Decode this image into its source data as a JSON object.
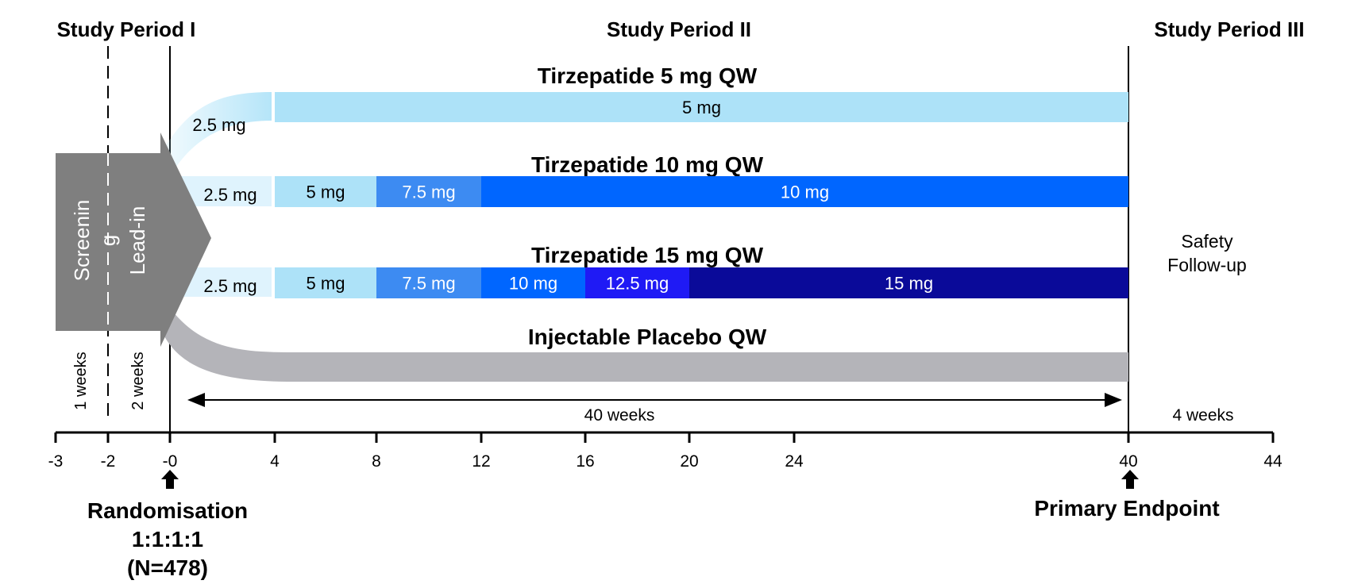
{
  "periods": {
    "p1": "Study Period I",
    "p2": "Study Period II",
    "p3": "Study Period III"
  },
  "arms": {
    "t5": {
      "title": "Tirzepatide 5 mg QW",
      "lead": "2.5 mg",
      "segments": [
        {
          "label": "5 mg",
          "start": 4,
          "end": 40,
          "color": "#ade2f8",
          "text_color": "#000000"
        }
      ]
    },
    "t10": {
      "title": "Tirzepatide 10 mg QW",
      "lead": "2.5 mg",
      "segments": [
        {
          "label": "5 mg",
          "start": 4,
          "end": 8,
          "color": "#ade2f8",
          "text_color": "#000000"
        },
        {
          "label": "7.5 mg",
          "start": 8,
          "end": 12,
          "color": "#3d8bf2",
          "text_color": "#ffffff"
        },
        {
          "label": "10 mg",
          "start": 12,
          "end": 40,
          "color": "#0066ff",
          "text_color": "#ffffff"
        }
      ]
    },
    "t15": {
      "title": "Tirzepatide 15 mg QW",
      "lead": "2.5 mg",
      "segments": [
        {
          "label": "5 mg",
          "start": 4,
          "end": 8,
          "color": "#ade2f8",
          "text_color": "#000000"
        },
        {
          "label": "7.5 mg",
          "start": 8,
          "end": 12,
          "color": "#3d8bf2",
          "text_color": "#ffffff"
        },
        {
          "label": "10 mg",
          "start": 12,
          "end": 16,
          "color": "#0066ff",
          "text_color": "#ffffff"
        },
        {
          "label": "12.5 mg",
          "start": 16,
          "end": 20,
          "color": "#1f1af5",
          "text_color": "#ffffff"
        },
        {
          "label": "15 mg",
          "start": 20,
          "end": 40,
          "color": "#0a0a99",
          "text_color": "#ffffff"
        }
      ]
    },
    "placebo": {
      "title": "Injectable Placebo QW",
      "color": "#b4b4b9"
    }
  },
  "arrow": {
    "screening": "Screenin",
    "screening_wrap": "g",
    "leadin": "Lead-in",
    "color": "#7f7f7f"
  },
  "safety": {
    "line1": "Safety",
    "line2": "Follow-up"
  },
  "durations": {
    "screen": "1 weeks",
    "leadin": "2 weeks",
    "treatment": "40 weeks",
    "followup": "4 weeks"
  },
  "axis": {
    "ticks": [
      {
        "label": "-3"
      },
      {
        "label": "-2"
      },
      {
        "label": "-0"
      },
      {
        "label": "4"
      },
      {
        "label": "8"
      },
      {
        "label": "12"
      },
      {
        "label": "16"
      },
      {
        "label": "20"
      },
      {
        "label": "24"
      },
      {
        "label": "40"
      },
      {
        "label": "44"
      }
    ]
  },
  "randomisation": {
    "line1": "Randomisation",
    "line2": "1:1:1:1",
    "line3": "(N=478)"
  },
  "endpoint": {
    "label": "Primary Endpoint"
  }
}
